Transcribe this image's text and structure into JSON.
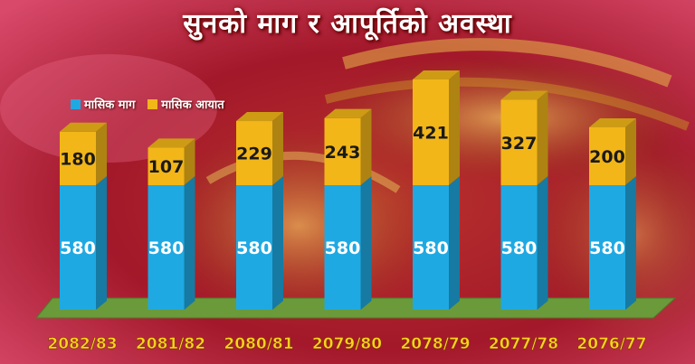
{
  "title": "सुनको माग र आपूर्तिको अवस्था",
  "legend": {
    "demand_label": "मासिक माग",
    "import_label": "मासिक आयात"
  },
  "colors": {
    "demand": "#1fa9e3",
    "import": "#f2b619",
    "floor": "#6a9a3a",
    "year_label": "#ffd21f"
  },
  "chart_data": {
    "type": "bar",
    "stacked": true,
    "categories": [
      "2082/83",
      "2081/82",
      "2080/81",
      "2079/80",
      "2078/79",
      "2077/78",
      "2076/77"
    ],
    "series": [
      {
        "name": "मासिक माग",
        "values": [
          580,
          580,
          580,
          580,
          580,
          580,
          580
        ]
      },
      {
        "name": "मासिक आयात",
        "values": [
          180,
          107,
          229,
          243,
          421,
          327,
          200
        ]
      }
    ],
    "legend_position": "top-left",
    "grid": false
  }
}
